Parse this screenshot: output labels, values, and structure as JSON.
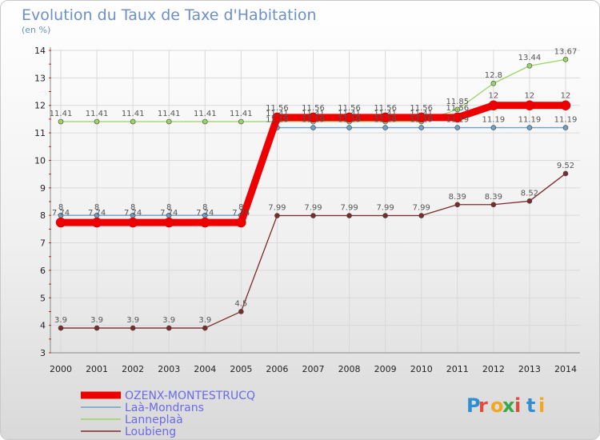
{
  "chart_data": {
    "type": "line",
    "title": "Evolution du Taux de Taxe d'Habitation",
    "subtitle": "(en %)",
    "x": [
      "2000",
      "2001",
      "2002",
      "2003",
      "2004",
      "2005",
      "2006",
      "2007",
      "2008",
      "2009",
      "2010",
      "2011",
      "2012",
      "2013",
      "2014"
    ],
    "ylim": [
      3,
      14
    ],
    "yticks": [
      3,
      4,
      5,
      6,
      7,
      8,
      9,
      10,
      11,
      12,
      13,
      14
    ],
    "series": [
      {
        "name": "Laà-Mondrans",
        "color": "#6e9fc6",
        "values": [
          8,
          8,
          8,
          8,
          8,
          8,
          11.19,
          11.19,
          11.19,
          11.19,
          11.19,
          11.19,
          11.19,
          11.19,
          11.19
        ],
        "labels": [
          "8",
          "8",
          "8",
          "8",
          "8",
          "8",
          "11.19",
          "11.19",
          "11.19",
          "11.19",
          "11.19",
          "11.19",
          "11.19",
          "11.19",
          "11.19"
        ]
      },
      {
        "name": "Lanneplaà",
        "color": "#9ad466",
        "values": [
          11.41,
          11.41,
          11.41,
          11.41,
          11.41,
          11.41,
          11.41,
          11.41,
          11.41,
          11.41,
          11.41,
          11.85,
          12.8,
          13.44,
          13.67
        ],
        "labels": [
          "11.41",
          "11.41",
          "11.41",
          "11.41",
          "11.41",
          "11.41",
          "11.41",
          "11.41",
          "11.41",
          "11.41",
          "11.41",
          "11.85",
          "12.8",
          "13.44",
          "13.67"
        ]
      },
      {
        "name": "Loubieng",
        "color": "#7a2b2b",
        "values": [
          3.9,
          3.9,
          3.9,
          3.9,
          3.9,
          4.5,
          7.99,
          7.99,
          7.99,
          7.99,
          7.99,
          8.39,
          8.39,
          8.52,
          9.52
        ],
        "labels": [
          "3.9",
          "3.9",
          "3.9",
          "3.9",
          "3.9",
          "4.5",
          "7.99",
          "7.99",
          "7.99",
          "7.99",
          "7.99",
          "8.39",
          "8.39",
          "8.52",
          "9.52"
        ]
      },
      {
        "name": "OZENX-MONTESTRUCQ",
        "color": "#ee0000",
        "values": [
          7.74,
          7.74,
          7.74,
          7.74,
          7.74,
          7.74,
          11.56,
          11.56,
          11.56,
          11.56,
          11.56,
          11.56,
          12,
          12,
          12
        ],
        "labels": [
          "7.74",
          "7.74",
          "7.74",
          "7.74",
          "7.74",
          "7.74",
          "11.56",
          "11.56",
          "11.56",
          "11.56",
          "11.56",
          "11.56",
          "12",
          "12",
          "12"
        ]
      }
    ],
    "legend_order": [
      "OZENX-MONTESTRUCQ",
      "Laà-Mondrans",
      "Lanneplaà",
      "Loubieng"
    ]
  },
  "brand": {
    "letters": [
      "P",
      "r",
      "o",
      "x",
      "i",
      "t",
      "i"
    ],
    "colors": [
      "#2f8fd0",
      "#e24a3b",
      "#f2a81d",
      "#3aa84a",
      "#e24a3b",
      "#2f8fd0",
      "#f2a81d"
    ]
  }
}
